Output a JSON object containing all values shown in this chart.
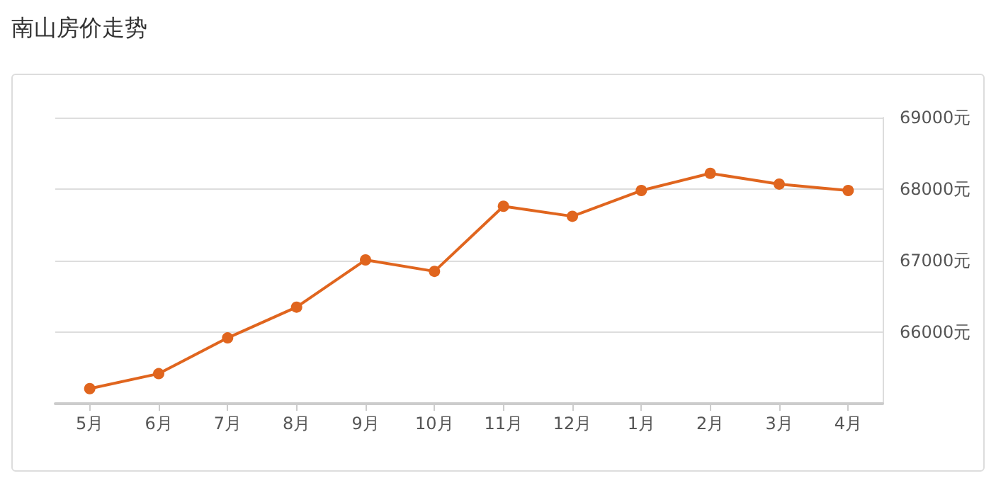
{
  "chart_data": {
    "type": "line",
    "title": "南山房价走势",
    "categories": [
      "5月",
      "6月",
      "7月",
      "8月",
      "9月",
      "10月",
      "11月",
      "12月",
      "1月",
      "2月",
      "3月",
      "4月"
    ],
    "series": [
      {
        "color": "#e0651e",
        "values": [
          65210,
          65420,
          65920,
          66350,
          67010,
          66850,
          67760,
          67620,
          67980,
          68220,
          68070,
          67980
        ]
      }
    ],
    "ylim": [
      65000,
      69000
    ],
    "yticks": [
      {
        "value": 65000,
        "label": null
      },
      {
        "value": 66000,
        "label": "66000元"
      },
      {
        "value": 67000,
        "label": "67000元"
      },
      {
        "value": 68000,
        "label": "68000元"
      },
      {
        "value": 69000,
        "label": "69000元"
      }
    ],
    "grid": "y",
    "marker": "circle",
    "line_style": "solid"
  }
}
